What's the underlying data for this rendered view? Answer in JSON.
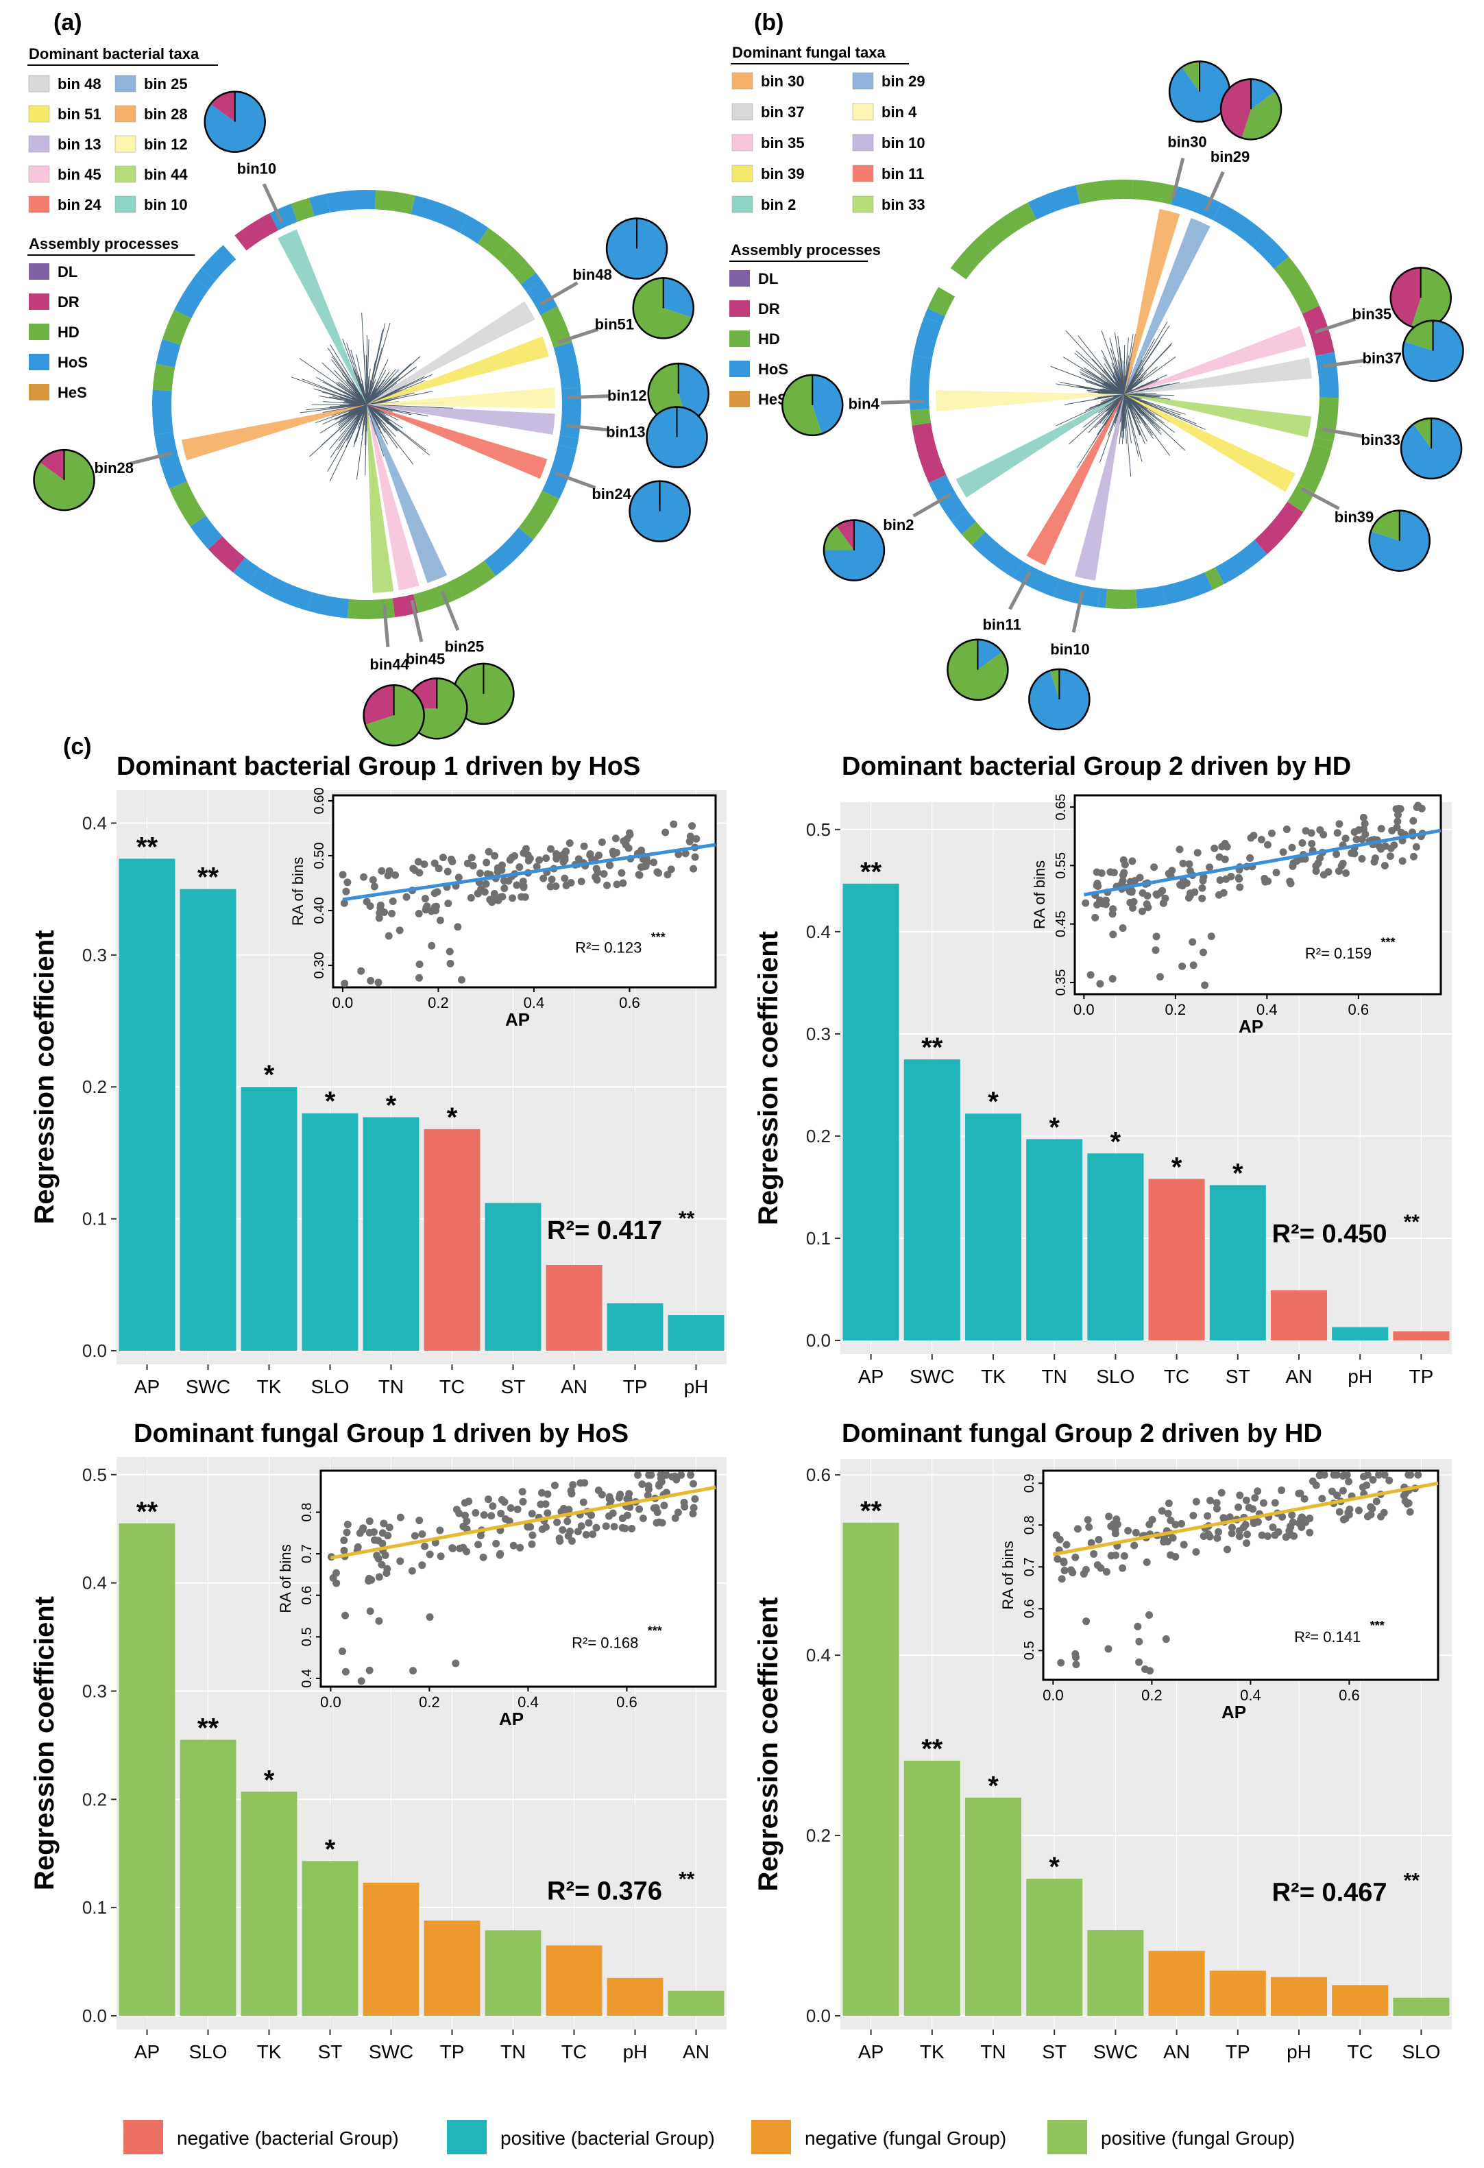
{
  "panels": {
    "a": "(a)",
    "b": "(b)",
    "c": "(c)"
  },
  "legend_a": {
    "title": "Dominant bacterial taxa",
    "items": [
      {
        "label": "bin 48",
        "color": "#d9d9d9"
      },
      {
        "label": "bin 25",
        "color": "#8fb4d9"
      },
      {
        "label": "bin 51",
        "color": "#f5e96a"
      },
      {
        "label": "bin 28",
        "color": "#f7b16a"
      },
      {
        "label": "bin 13",
        "color": "#c5b8de"
      },
      {
        "label": "bin 12",
        "color": "#fbf5b0"
      },
      {
        "label": "bin 45",
        "color": "#f8c6dc"
      },
      {
        "label": "bin 44",
        "color": "#b5dc79"
      },
      {
        "label": "bin 24",
        "color": "#f47c6e"
      },
      {
        "label": "bin 10",
        "color": "#8fd3c4"
      }
    ],
    "process_title": "Assembly processes",
    "processes": [
      {
        "label": "DL",
        "color": "#7e62a3"
      },
      {
        "label": "DR",
        "color": "#c13c7a"
      },
      {
        "label": "HD",
        "color": "#6fb244"
      },
      {
        "label": "HoS",
        "color": "#3498db"
      },
      {
        "label": "HeS",
        "color": "#d9953b"
      }
    ]
  },
  "legend_b": {
    "title": "Dominant fungal taxa",
    "items": [
      {
        "label": "bin 30",
        "color": "#f7b16a"
      },
      {
        "label": "bin 29",
        "color": "#8fb4d9"
      },
      {
        "label": "bin 37",
        "color": "#d9d9d9"
      },
      {
        "label": "bin 4",
        "color": "#fbf5b0"
      },
      {
        "label": "bin 35",
        "color": "#f8c6dc"
      },
      {
        "label": "bin 10",
        "color": "#c5b8de"
      },
      {
        "label": "bin 39",
        "color": "#f5e96a"
      },
      {
        "label": "bin 11",
        "color": "#f47c6e"
      },
      {
        "label": "bin 2",
        "color": "#8fd3c4"
      },
      {
        "label": "bin 33",
        "color": "#b5dc79"
      }
    ],
    "process_title": "Assembly processes",
    "processes": [
      {
        "label": "DL",
        "color": "#7e62a3"
      },
      {
        "label": "DR",
        "color": "#c13c7a"
      },
      {
        "label": "HD",
        "color": "#6fb244"
      },
      {
        "label": "HoS",
        "color": "#3498db"
      },
      {
        "label": "HeS",
        "color": "#d9953b"
      }
    ]
  },
  "circle_a": {
    "wedges": [
      {
        "bin": "bin48",
        "angle": 60,
        "color": "#d9d9d9",
        "pie": [
          1
        ]
      },
      {
        "bin": "bin51",
        "angle": 72,
        "color": "#f5e96a",
        "pie": [
          0.3,
          0.7
        ]
      },
      {
        "bin": "bin12",
        "angle": 88,
        "color": "#fbf5b0",
        "pie": [
          0.45,
          0.55
        ]
      },
      {
        "bin": "bin13",
        "angle": 96,
        "color": "#c5b8de",
        "pie": [
          1
        ]
      },
      {
        "bin": "bin24",
        "angle": 110,
        "color": "#f47c6e",
        "pie": [
          1
        ]
      },
      {
        "bin": "bin25",
        "angle": 158,
        "color": "#8fb4d9",
        "pie": [
          0,
          1
        ]
      },
      {
        "bin": "bin45",
        "angle": 167,
        "color": "#f8c6dc",
        "pie": [
          0,
          0.75,
          0.25
        ]
      },
      {
        "bin": "bin44",
        "angle": 175,
        "color": "#b5dc79",
        "pie": [
          0,
          0.7,
          0.3
        ]
      },
      {
        "bin": "bin28",
        "angle": 256,
        "color": "#f7b16a",
        "pie": [
          0,
          0.85,
          0.15
        ]
      },
      {
        "bin": "bin10",
        "angle": 335,
        "color": "#8fd3c4",
        "pie": [
          0.85,
          0,
          0.15
        ]
      }
    ]
  },
  "circle_b": {
    "wedges": [
      {
        "bin": "bin30",
        "angle": 14,
        "color": "#f7b16a",
        "pie": [
          0.9,
          0.1
        ]
      },
      {
        "bin": "bin29",
        "angle": 24,
        "color": "#8fb4d9",
        "pie": [
          0.15,
          0.4,
          0.45
        ]
      },
      {
        "bin": "bin35",
        "angle": 72,
        "color": "#f8c6dc",
        "pie": [
          0,
          0.55,
          0.45
        ]
      },
      {
        "bin": "bin37",
        "angle": 82,
        "color": "#d9d9d9",
        "pie": [
          0.8,
          0.2
        ]
      },
      {
        "bin": "bin33",
        "angle": 100,
        "color": "#b5dc79",
        "pie": [
          0.9,
          0.1
        ]
      },
      {
        "bin": "bin39",
        "angle": 118,
        "color": "#f5e96a",
        "pie": [
          0.8,
          0.2
        ]
      },
      {
        "bin": "bin10",
        "angle": 192,
        "color": "#c5b8de",
        "pie": [
          0.95,
          0.05
        ]
      },
      {
        "bin": "bin11",
        "angle": 208,
        "color": "#f47c6e",
        "pie": [
          0.15,
          0.85
        ]
      },
      {
        "bin": "bin2",
        "angle": 240,
        "color": "#8fd3c4",
        "pie": [
          0.75,
          0.15,
          0.1
        ]
      },
      {
        "bin": "bin4",
        "angle": 268,
        "color": "#fbf5b0",
        "pie": [
          0.45,
          0.55
        ]
      }
    ]
  },
  "chart_data": [
    {
      "type": "bar",
      "title": "Dominant bacterial Group 1 driven by HoS",
      "ylabel": "Regression coefficient",
      "categories": [
        "AP",
        "SWC",
        "TK",
        "SLO",
        "TN",
        "TC",
        "ST",
        "AN",
        "TP",
        "pH"
      ],
      "values": [
        0.373,
        0.35,
        0.2,
        0.18,
        0.177,
        0.168,
        0.112,
        0.065,
        0.036,
        0.027
      ],
      "signs": [
        "positive",
        "positive",
        "positive",
        "positive",
        "positive",
        "negative",
        "positive",
        "negative",
        "positive",
        "positive"
      ],
      "stars": [
        "**",
        "**",
        "*",
        "*",
        "*",
        "*",
        "",
        "",
        "",
        ""
      ],
      "ylim": [
        0,
        0.42
      ],
      "yticks": [
        "0.0",
        "0.1",
        "0.2",
        "0.3",
        "0.4"
      ],
      "r2": "R²= 0.417",
      "r2_sig": "**",
      "inset": {
        "type": "scatter",
        "xlabel": "AP",
        "ylabel": "RA of bins",
        "xticks": [
          "0.0",
          "0.2",
          "0.4",
          "0.6"
        ],
        "yticks": [
          "0.30",
          "0.40",
          "0.50",
          "0.60"
        ],
        "xlim": [
          -0.02,
          0.78
        ],
        "ylim": [
          0.26,
          0.61
        ],
        "fit": [
          0.42,
          0.52
        ],
        "r2": "R²= 0.123",
        "r2_sig": "***"
      }
    },
    {
      "type": "bar",
      "title": "Dominant bacterial Group 2 driven by HD",
      "ylabel": "Regression coefficient",
      "categories": [
        "AP",
        "SWC",
        "TK",
        "TN",
        "SLO",
        "TC",
        "ST",
        "AN",
        "pH",
        "TP"
      ],
      "values": [
        0.447,
        0.275,
        0.222,
        0.197,
        0.183,
        0.158,
        0.152,
        0.049,
        0.013,
        0.009
      ],
      "signs": [
        "positive",
        "positive",
        "positive",
        "positive",
        "positive",
        "negative",
        "positive",
        "negative",
        "positive",
        "negative"
      ],
      "stars": [
        "**",
        "**",
        "*",
        "*",
        "*",
        "*",
        "*",
        "",
        "",
        ""
      ],
      "ylim": [
        0,
        0.52
      ],
      "yticks": [
        "0.0",
        "0.1",
        "0.2",
        "0.3",
        "0.4",
        "0.5"
      ],
      "r2": "R²= 0.450",
      "r2_sig": "**",
      "inset": {
        "type": "scatter",
        "xlabel": "AP",
        "ylabel": "RA of bins",
        "xticks": [
          "0.0",
          "0.2",
          "0.4",
          "0.6"
        ],
        "yticks": [
          "0.35",
          "0.45",
          "0.55",
          "0.65"
        ],
        "xlim": [
          -0.02,
          0.78
        ],
        "ylim": [
          0.33,
          0.67
        ],
        "fit": [
          0.5,
          0.61
        ],
        "r2": "R²= 0.159",
        "r2_sig": "***"
      }
    },
    {
      "type": "bar",
      "title": "Dominant fungal Group 1 driven by HoS",
      "ylabel": "Regression coefficient",
      "categories": [
        "AP",
        "SLO",
        "TK",
        "ST",
        "SWC",
        "TP",
        "TN",
        "TC",
        "pH",
        "AN"
      ],
      "values": [
        0.455,
        0.255,
        0.207,
        0.143,
        0.123,
        0.088,
        0.079,
        0.065,
        0.035,
        0.023
      ],
      "signs": [
        "positive",
        "positive",
        "positive",
        "positive",
        "negative",
        "negative",
        "positive",
        "negative",
        "negative",
        "positive"
      ],
      "stars": [
        "**",
        "**",
        "*",
        "*",
        "",
        "",
        "",
        "",
        "",
        ""
      ],
      "ylim": [
        0,
        0.51
      ],
      "yticks": [
        "0.0",
        "0.1",
        "0.2",
        "0.3",
        "0.4",
        "0.5"
      ],
      "r2": "R²= 0.376",
      "r2_sig": "**",
      "inset": {
        "type": "scatter",
        "xlabel": "AP",
        "ylabel": "RA of bins",
        "xticks": [
          "0.0",
          "0.2",
          "0.4",
          "0.6"
        ],
        "yticks": [
          "0.4",
          "0.5",
          "0.6",
          "0.7",
          "0.8"
        ],
        "xlim": [
          -0.02,
          0.78
        ],
        "ylim": [
          0.38,
          0.9
        ],
        "fit": [
          0.69,
          0.86
        ],
        "r2": "R²= 0.168",
        "r2_sig": "***"
      }
    },
    {
      "type": "bar",
      "title": "Dominant fungal Group 2 driven by HD",
      "ylabel": "Regression coefficient",
      "categories": [
        "AP",
        "TK",
        "TN",
        "ST",
        "SWC",
        "AN",
        "TP",
        "pH",
        "TC",
        "SLO"
      ],
      "values": [
        0.547,
        0.283,
        0.242,
        0.152,
        0.095,
        0.072,
        0.05,
        0.043,
        0.034,
        0.02
      ],
      "signs": [
        "positive",
        "positive",
        "positive",
        "positive",
        "positive",
        "negative",
        "negative",
        "negative",
        "negative",
        "positive"
      ],
      "stars": [
        "**",
        "**",
        "*",
        "*",
        "",
        "",
        "",
        "",
        "",
        ""
      ],
      "ylim": [
        0,
        0.61
      ],
      "yticks": [
        "0.0",
        "0.2",
        "0.4",
        "0.6"
      ],
      "r2": "R²= 0.467",
      "r2_sig": "**",
      "inset": {
        "type": "scatter",
        "xlabel": "AP",
        "ylabel": "RA of bins",
        "xticks": [
          "0.0",
          "0.2",
          "0.4",
          "0.6"
        ],
        "yticks": [
          "0.5",
          "0.6",
          "0.7",
          "0.8",
          "0.9"
        ],
        "xlim": [
          -0.02,
          0.78
        ],
        "ylim": [
          0.43,
          0.93
        ],
        "fit": [
          0.73,
          0.9
        ],
        "r2": "R²= 0.141",
        "r2_sig": "***"
      }
    }
  ],
  "bottom_legend": [
    {
      "label": "negative (bacterial Group)",
      "color": "#ec7063"
    },
    {
      "label": "positive (bacterial Group)",
      "color": "#1fb5b9"
    },
    {
      "label": "negative (fungal Group)",
      "color": "#ec9a2e"
    },
    {
      "label": "positive (fungal Group)",
      "color": "#8fc45c"
    }
  ],
  "colors": {
    "bact_pos": "#1fb5b9",
    "bact_neg": "#ec7063",
    "fung_pos": "#8fc45c",
    "fung_neg": "#ec9a2e",
    "panel_bg": "#ebebeb",
    "grid": "#ffffff",
    "inset_point": "#707070",
    "fit_blue": "#3a8fd6",
    "fit_yellow": "#e8b830"
  }
}
